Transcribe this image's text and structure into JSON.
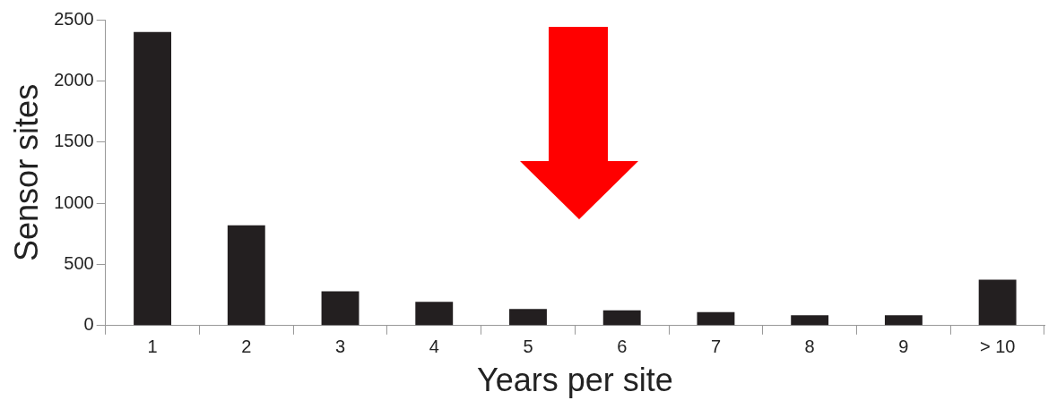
{
  "chart_data": {
    "type": "bar",
    "xlabel": "Years per site",
    "ylabel": "Sensor sites",
    "categories": [
      "1",
      "2",
      "3",
      "4",
      "5",
      "6",
      "7",
      "8",
      "9",
      "> 10"
    ],
    "values": [
      2400,
      820,
      280,
      195,
      135,
      125,
      110,
      85,
      85,
      375
    ],
    "color": "#231f20",
    "ylim": [
      0,
      2500
    ],
    "yticks": [
      0,
      500,
      1000,
      1500,
      2000,
      2500
    ],
    "grid": false,
    "legend": false
  }
}
